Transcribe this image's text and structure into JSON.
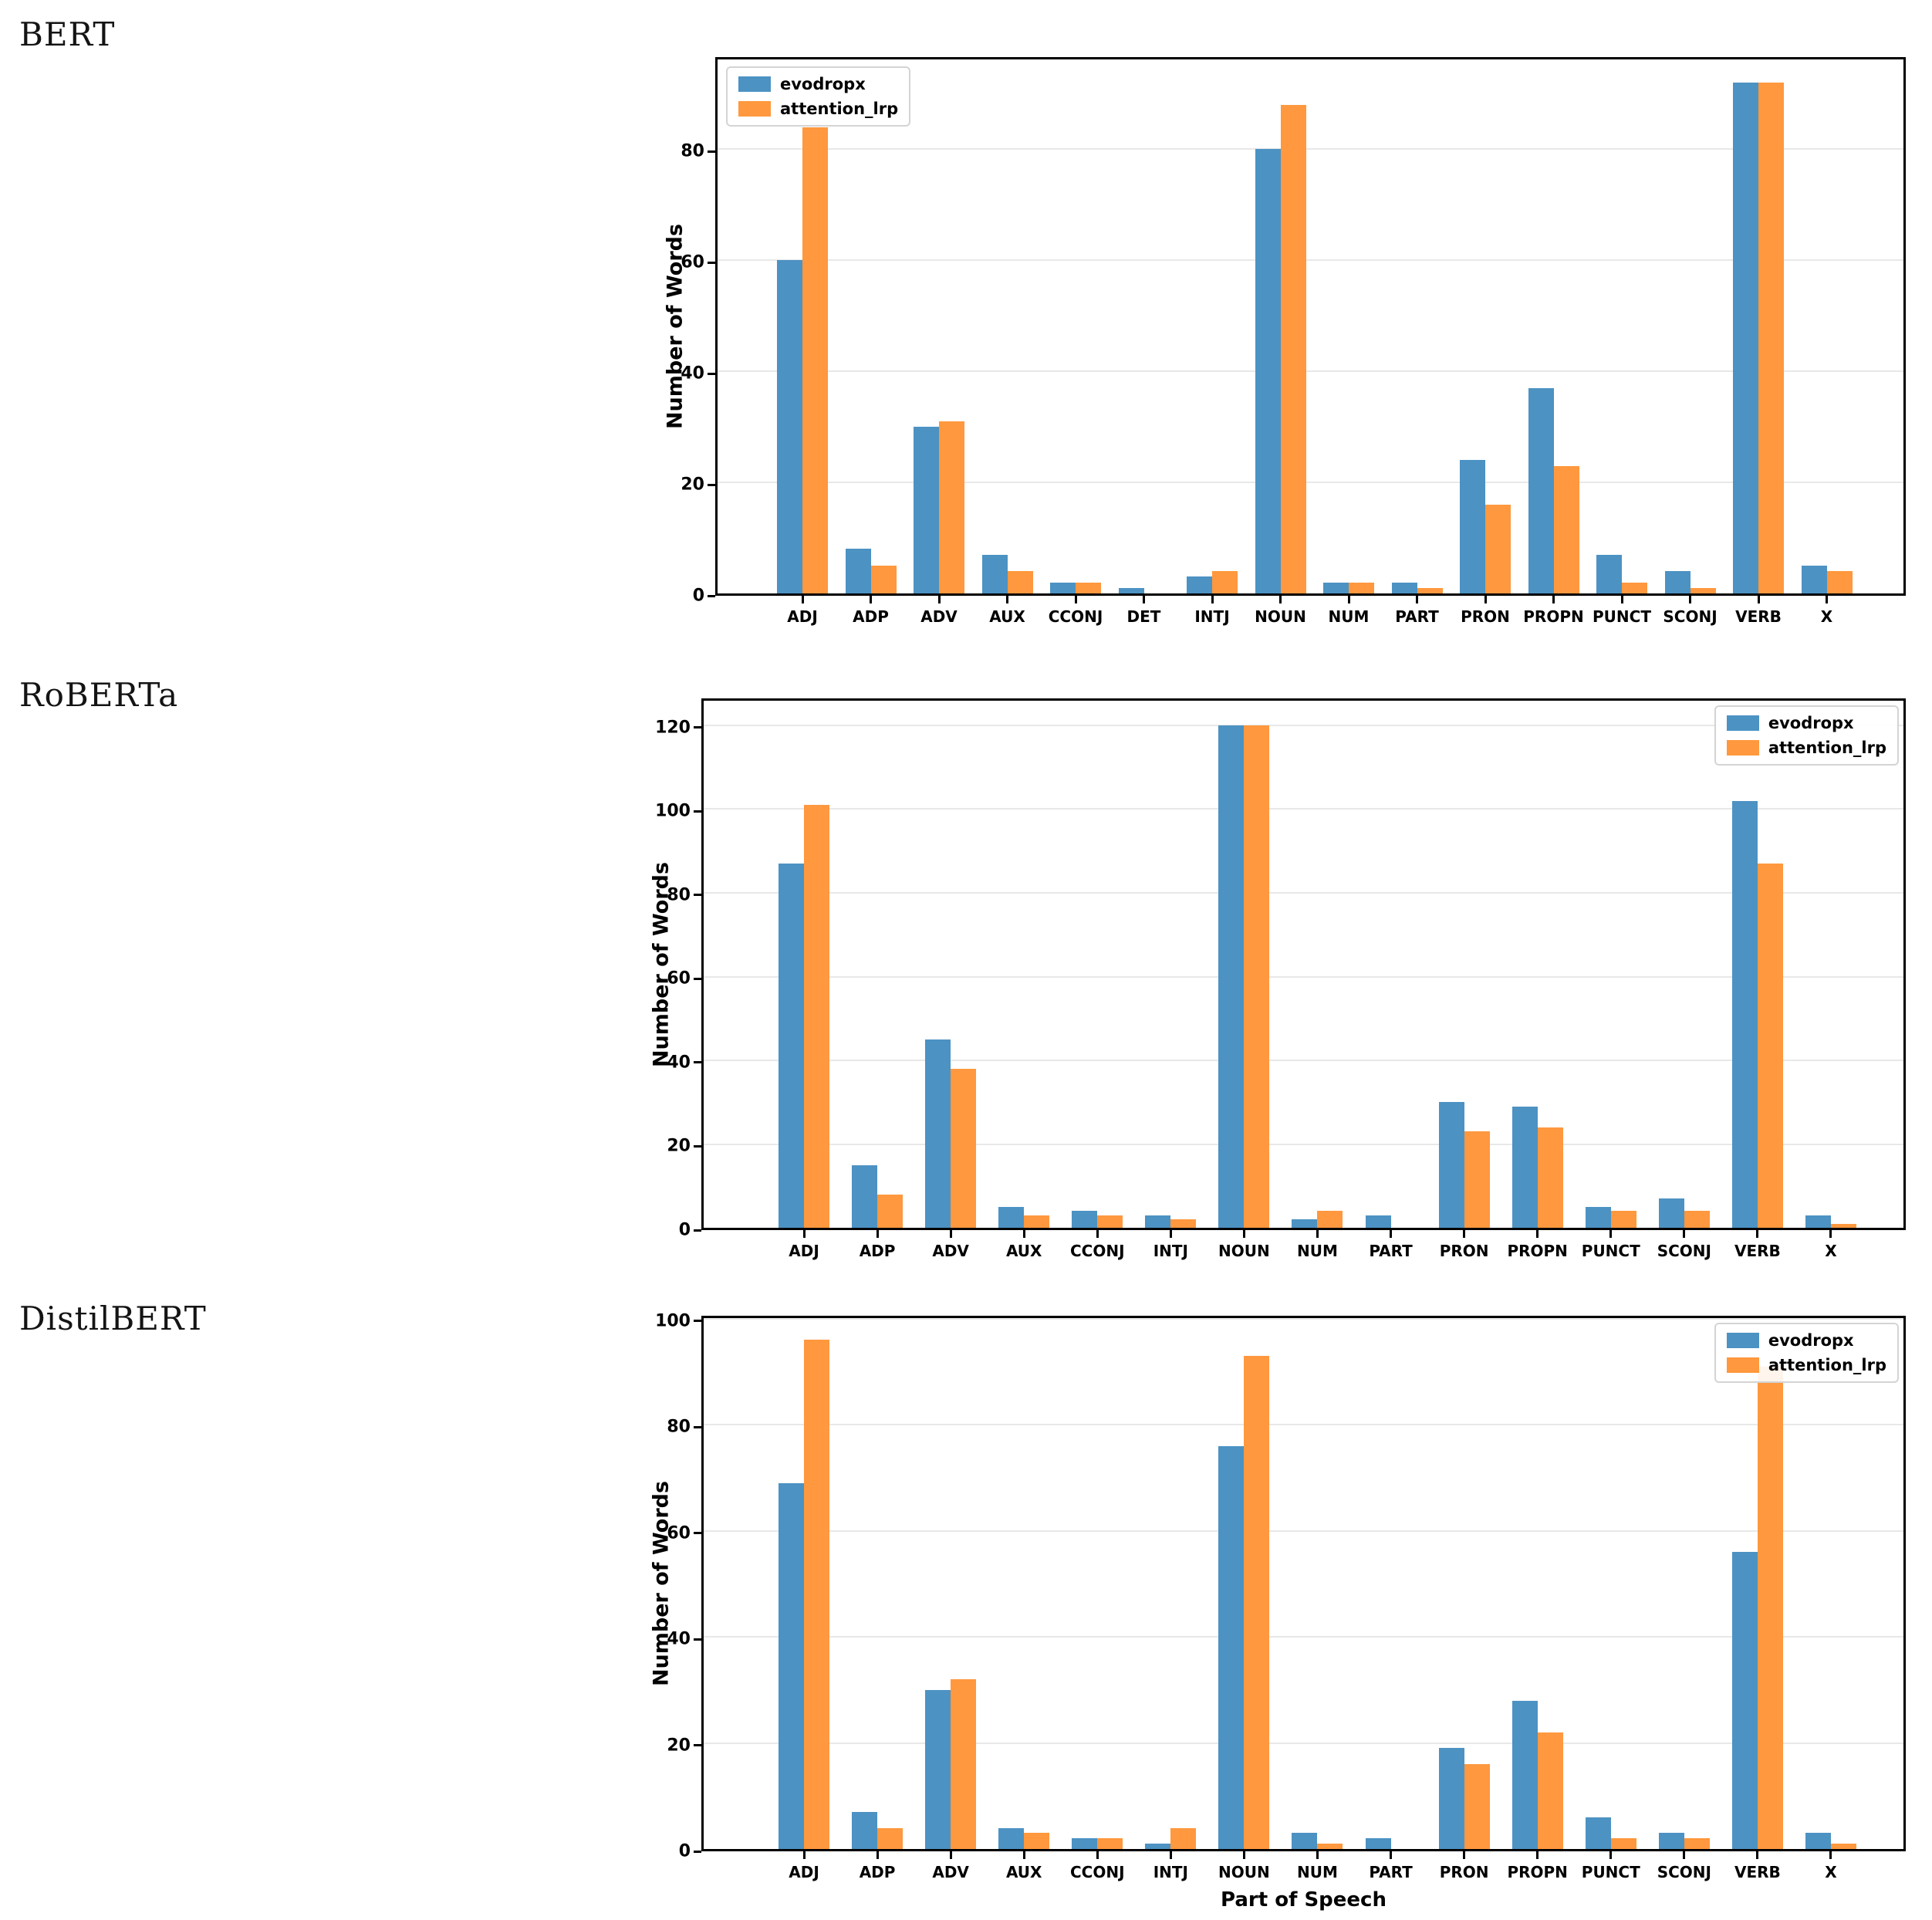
{
  "page": {
    "background": "#ffffff"
  },
  "colors": {
    "series_blue": "#4c92c3",
    "series_orange": "#ff983e",
    "grid": "#e8e8e8",
    "axis": "#000000"
  },
  "chart_data": [
    {
      "type": "bar",
      "title": "BERT",
      "ylabel": "Number of Words",
      "xlabel": "",
      "legend_position": "top-left",
      "grid": true,
      "yticks": [
        0,
        20,
        40,
        60,
        80
      ],
      "ylim": [
        0,
        97
      ],
      "categories": [
        "ADJ",
        "ADP",
        "ADV",
        "AUX",
        "CCONJ",
        "DET",
        "INTJ",
        "NOUN",
        "NUM",
        "PART",
        "PRON",
        "PROPN",
        "PUNCT",
        "SCONJ",
        "VERB",
        "X"
      ],
      "series": [
        {
          "name": "evodropx",
          "color": "#4c92c3",
          "values": [
            60,
            8,
            30,
            7,
            2,
            1,
            3,
            80,
            2,
            2,
            24,
            37,
            7,
            4,
            92,
            5
          ]
        },
        {
          "name": "attention_lrp",
          "color": "#ff983e",
          "values": [
            84,
            5,
            31,
            4,
            2,
            0,
            4,
            88,
            2,
            1,
            16,
            23,
            2,
            1,
            92,
            4
          ]
        }
      ]
    },
    {
      "type": "bar",
      "title": "RoBERTa",
      "ylabel": "Number of Words",
      "xlabel": "",
      "legend_position": "top-right",
      "grid": true,
      "yticks": [
        0,
        20,
        40,
        60,
        80,
        100,
        120
      ],
      "ylim": [
        0,
        127
      ],
      "categories": [
        "ADJ",
        "ADP",
        "ADV",
        "AUX",
        "CCONJ",
        "INTJ",
        "NOUN",
        "NUM",
        "PART",
        "PRON",
        "PROPN",
        "PUNCT",
        "SCONJ",
        "VERB",
        "X"
      ],
      "series": [
        {
          "name": "evodropx",
          "color": "#4c92c3",
          "values": [
            87,
            15,
            45,
            5,
            4,
            3,
            120,
            2,
            3,
            30,
            29,
            5,
            7,
            102,
            3
          ]
        },
        {
          "name": "attention_lrp",
          "color": "#ff983e",
          "values": [
            101,
            8,
            38,
            3,
            3,
            2,
            120,
            4,
            0,
            23,
            24,
            4,
            4,
            87,
            1
          ]
        }
      ]
    },
    {
      "type": "bar",
      "title": "DistilBERT",
      "ylabel": "Number of Words",
      "xlabel": "Part of Speech",
      "legend_position": "top-right",
      "grid": true,
      "yticks": [
        0,
        20,
        40,
        60,
        80,
        100
      ],
      "ylim": [
        0,
        101
      ],
      "categories": [
        "ADJ",
        "ADP",
        "ADV",
        "AUX",
        "CCONJ",
        "INTJ",
        "NOUN",
        "NUM",
        "PART",
        "PRON",
        "PROPN",
        "PUNCT",
        "SCONJ",
        "VERB",
        "X"
      ],
      "series": [
        {
          "name": "evodropx",
          "color": "#4c92c3",
          "values": [
            69,
            7,
            30,
            4,
            2,
            1,
            76,
            3,
            2,
            19,
            28,
            6,
            3,
            56,
            3
          ]
        },
        {
          "name": "attention_lrp",
          "color": "#ff983e",
          "values": [
            96,
            4,
            32,
            3,
            2,
            4,
            93,
            1,
            0,
            16,
            22,
            2,
            2,
            91,
            1
          ]
        }
      ]
    }
  ]
}
